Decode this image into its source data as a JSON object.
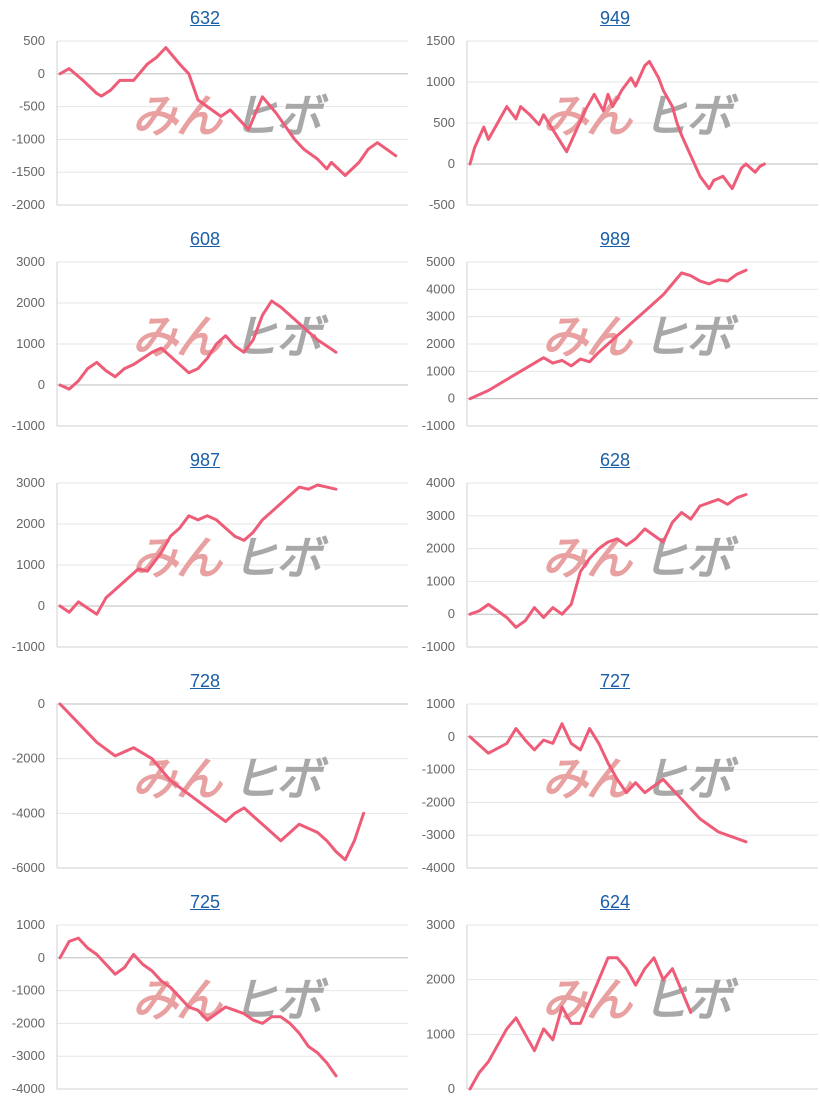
{
  "watermark": {
    "left": "みん",
    "right": "ヒボ",
    "left_color": "#e8a0a0",
    "right_color": "#a8a8a8"
  },
  "line_color": "#ee5c78",
  "chart_data": [
    {
      "type": "line",
      "title": "632",
      "ylim": [
        -2000,
        500
      ],
      "yticks": [
        500,
        0,
        -500,
        -1000,
        -1500,
        -2000
      ],
      "grid": true,
      "x": [
        0,
        2,
        5,
        8,
        9,
        11,
        13,
        16,
        19,
        21,
        23,
        26,
        28,
        30,
        32,
        35,
        37,
        39,
        41,
        44,
        47,
        49,
        51,
        53,
        56,
        58,
        59,
        62,
        65,
        67,
        69,
        71,
        73
      ],
      "y": [
        0,
        80,
        -100,
        -300,
        -340,
        -250,
        -100,
        -100,
        150,
        250,
        400,
        150,
        0,
        -400,
        -500,
        -650,
        -550,
        -700,
        -850,
        -350,
        -600,
        -800,
        -1000,
        -1150,
        -1300,
        -1450,
        -1350,
        -1550,
        -1350,
        -1150,
        -1050,
        -1150,
        -1250
      ]
    },
    {
      "type": "line",
      "title": "949",
      "ylim": [
        -500,
        1500
      ],
      "yticks": [
        1500,
        1000,
        500,
        0,
        -500
      ],
      "grid": true,
      "x": [
        0,
        1,
        3,
        4,
        6,
        8,
        10,
        11,
        13,
        15,
        16,
        18,
        21,
        23,
        25,
        27,
        29,
        30,
        31,
        33,
        35,
        36,
        38,
        39,
        41,
        42,
        44,
        45,
        46,
        48,
        50,
        52,
        53,
        55,
        57,
        59,
        60,
        61,
        62,
        63,
        64
      ],
      "y": [
        0,
        200,
        450,
        300,
        500,
        700,
        550,
        700,
        600,
        480,
        600,
        420,
        150,
        400,
        650,
        850,
        650,
        850,
        700,
        900,
        1050,
        950,
        1200,
        1250,
        1050,
        900,
        700,
        500,
        350,
        100,
        -150,
        -300,
        -200,
        -150,
        -300,
        -50,
        0,
        -50,
        -100,
        -30,
        0
      ]
    },
    {
      "type": "line",
      "title": "608",
      "ylim": [
        -1000,
        3000
      ],
      "yticks": [
        3000,
        2000,
        1000,
        0,
        -1000
      ],
      "grid": true,
      "x": [
        0,
        2,
        4,
        6,
        8,
        10,
        12,
        14,
        16,
        18,
        20,
        22,
        24,
        26,
        28,
        30,
        32,
        34,
        36,
        38,
        40,
        42,
        44,
        46,
        48,
        50,
        52,
        54,
        56,
        58,
        60
      ],
      "y": [
        0,
        -100,
        100,
        400,
        550,
        350,
        200,
        400,
        500,
        650,
        800,
        900,
        700,
        500,
        300,
        400,
        650,
        1000,
        1200,
        950,
        800,
        1100,
        1700,
        2050,
        1900,
        1700,
        1500,
        1300,
        1100,
        950,
        800
      ]
    },
    {
      "type": "line",
      "title": "989",
      "ylim": [
        -1000,
        5000
      ],
      "yticks": [
        5000,
        4000,
        3000,
        2000,
        1000,
        0,
        -1000
      ],
      "grid": true,
      "x": [
        0,
        4,
        8,
        12,
        16,
        18,
        20,
        22,
        24,
        26,
        28,
        30,
        32,
        34,
        36,
        38,
        40,
        42,
        44,
        46,
        48,
        50,
        52,
        54,
        56,
        58,
        60
      ],
      "y": [
        0,
        300,
        700,
        1100,
        1500,
        1300,
        1400,
        1200,
        1450,
        1350,
        1700,
        2000,
        2300,
        2600,
        2900,
        3200,
        3500,
        3800,
        4200,
        4600,
        4500,
        4300,
        4200,
        4350,
        4300,
        4550,
        4700
      ]
    },
    {
      "type": "line",
      "title": "987",
      "ylim": [
        -1000,
        3000
      ],
      "yticks": [
        3000,
        2000,
        1000,
        0,
        -1000
      ],
      "grid": true,
      "x": [
        0,
        2,
        4,
        6,
        8,
        10,
        12,
        15,
        17,
        19,
        22,
        24,
        26,
        28,
        30,
        32,
        34,
        36,
        38,
        40,
        42,
        44,
        46,
        48,
        50,
        52,
        54,
        56,
        58,
        60
      ],
      "y": [
        0,
        -150,
        100,
        -50,
        -200,
        200,
        400,
        700,
        900,
        850,
        1300,
        1700,
        1900,
        2200,
        2100,
        2200,
        2100,
        1900,
        1700,
        1600,
        1800,
        2100,
        2300,
        2500,
        2700,
        2900,
        2850,
        2950,
        2900,
        2850
      ]
    },
    {
      "type": "line",
      "title": "628",
      "ylim": [
        -1000,
        4000
      ],
      "yticks": [
        4000,
        3000,
        2000,
        1000,
        0,
        -1000
      ],
      "grid": true,
      "x": [
        0,
        2,
        4,
        6,
        8,
        10,
        12,
        14,
        16,
        18,
        20,
        22,
        24,
        26,
        28,
        30,
        32,
        34,
        36,
        38,
        40,
        42,
        44,
        46,
        48,
        50,
        52,
        54,
        56,
        58,
        60
      ],
      "y": [
        0,
        100,
        300,
        100,
        -100,
        -400,
        -200,
        200,
        -100,
        200,
        0,
        300,
        1300,
        1700,
        2000,
        2200,
        2300,
        2100,
        2300,
        2600,
        2400,
        2200,
        2800,
        3100,
        2900,
        3300,
        3400,
        3500,
        3350,
        3550,
        3650
      ]
    },
    {
      "type": "line",
      "title": "728",
      "ylim": [
        -6000,
        0
      ],
      "yticks": [
        0,
        -2000,
        -4000,
        -6000
      ],
      "grid": true,
      "x": [
        0,
        4,
        8,
        12,
        16,
        18,
        20,
        22,
        24,
        28,
        32,
        36,
        38,
        40,
        42,
        44,
        46,
        48,
        52,
        56,
        58,
        60,
        62,
        64,
        66
      ],
      "y": [
        0,
        -700,
        -1400,
        -1900,
        -1600,
        -1800,
        -2000,
        -2400,
        -2800,
        -3300,
        -3800,
        -4300,
        -4000,
        -3800,
        -4100,
        -4400,
        -4700,
        -5000,
        -4400,
        -4700,
        -5000,
        -5400,
        -5700,
        -5000,
        -4000
      ]
    },
    {
      "type": "line",
      "title": "727",
      "ylim": [
        -4000,
        1000
      ],
      "yticks": [
        1000,
        0,
        -1000,
        -2000,
        -3000,
        -4000
      ],
      "grid": true,
      "x": [
        0,
        4,
        8,
        10,
        12,
        14,
        16,
        18,
        20,
        22,
        24,
        26,
        28,
        30,
        32,
        34,
        36,
        38,
        40,
        42,
        44,
        46,
        48,
        50,
        52,
        54,
        56,
        58,
        60
      ],
      "y": [
        0,
        -500,
        -200,
        250,
        -100,
        -400,
        -100,
        -200,
        400,
        -200,
        -400,
        250,
        -200,
        -800,
        -1300,
        -1700,
        -1400,
        -1700,
        -1500,
        -1300,
        -1600,
        -1900,
        -2200,
        -2500,
        -2700,
        -2900,
        -3000,
        -3100,
        -3200
      ]
    },
    {
      "type": "line",
      "title": "725",
      "ylim": [
        -4000,
        1000
      ],
      "yticks": [
        1000,
        0,
        -1000,
        -2000,
        -3000,
        -4000
      ],
      "grid": true,
      "x": [
        0,
        2,
        4,
        6,
        8,
        10,
        12,
        14,
        16,
        18,
        20,
        22,
        24,
        26,
        28,
        30,
        32,
        34,
        36,
        38,
        40,
        42,
        44,
        46,
        48,
        50,
        52,
        54,
        56,
        58,
        60
      ],
      "y": [
        0,
        500,
        600,
        300,
        100,
        -200,
        -500,
        -300,
        100,
        -200,
        -400,
        -700,
        -900,
        -1200,
        -1500,
        -1600,
        -1900,
        -1700,
        -1500,
        -1600,
        -1700,
        -1900,
        -2000,
        -1800,
        -1800,
        -2000,
        -2300,
        -2700,
        -2900,
        -3200,
        -3600
      ]
    },
    {
      "type": "line",
      "title": "624",
      "ylim": [
        0,
        3000
      ],
      "yticks": [
        3000,
        2000,
        1000,
        0
      ],
      "grid": true,
      "x": [
        0,
        2,
        4,
        6,
        8,
        10,
        12,
        14,
        16,
        18,
        20,
        22,
        24,
        26,
        28,
        30,
        32,
        34,
        36,
        38,
        40,
        42,
        44,
        46,
        48
      ],
      "y": [
        0,
        300,
        500,
        800,
        1100,
        1300,
        1000,
        700,
        1100,
        900,
        1500,
        1200,
        1200,
        1600,
        2000,
        2400,
        2400,
        2200,
        1900,
        2200,
        2400,
        2000,
        2200,
        1800,
        1400
      ]
    }
  ]
}
